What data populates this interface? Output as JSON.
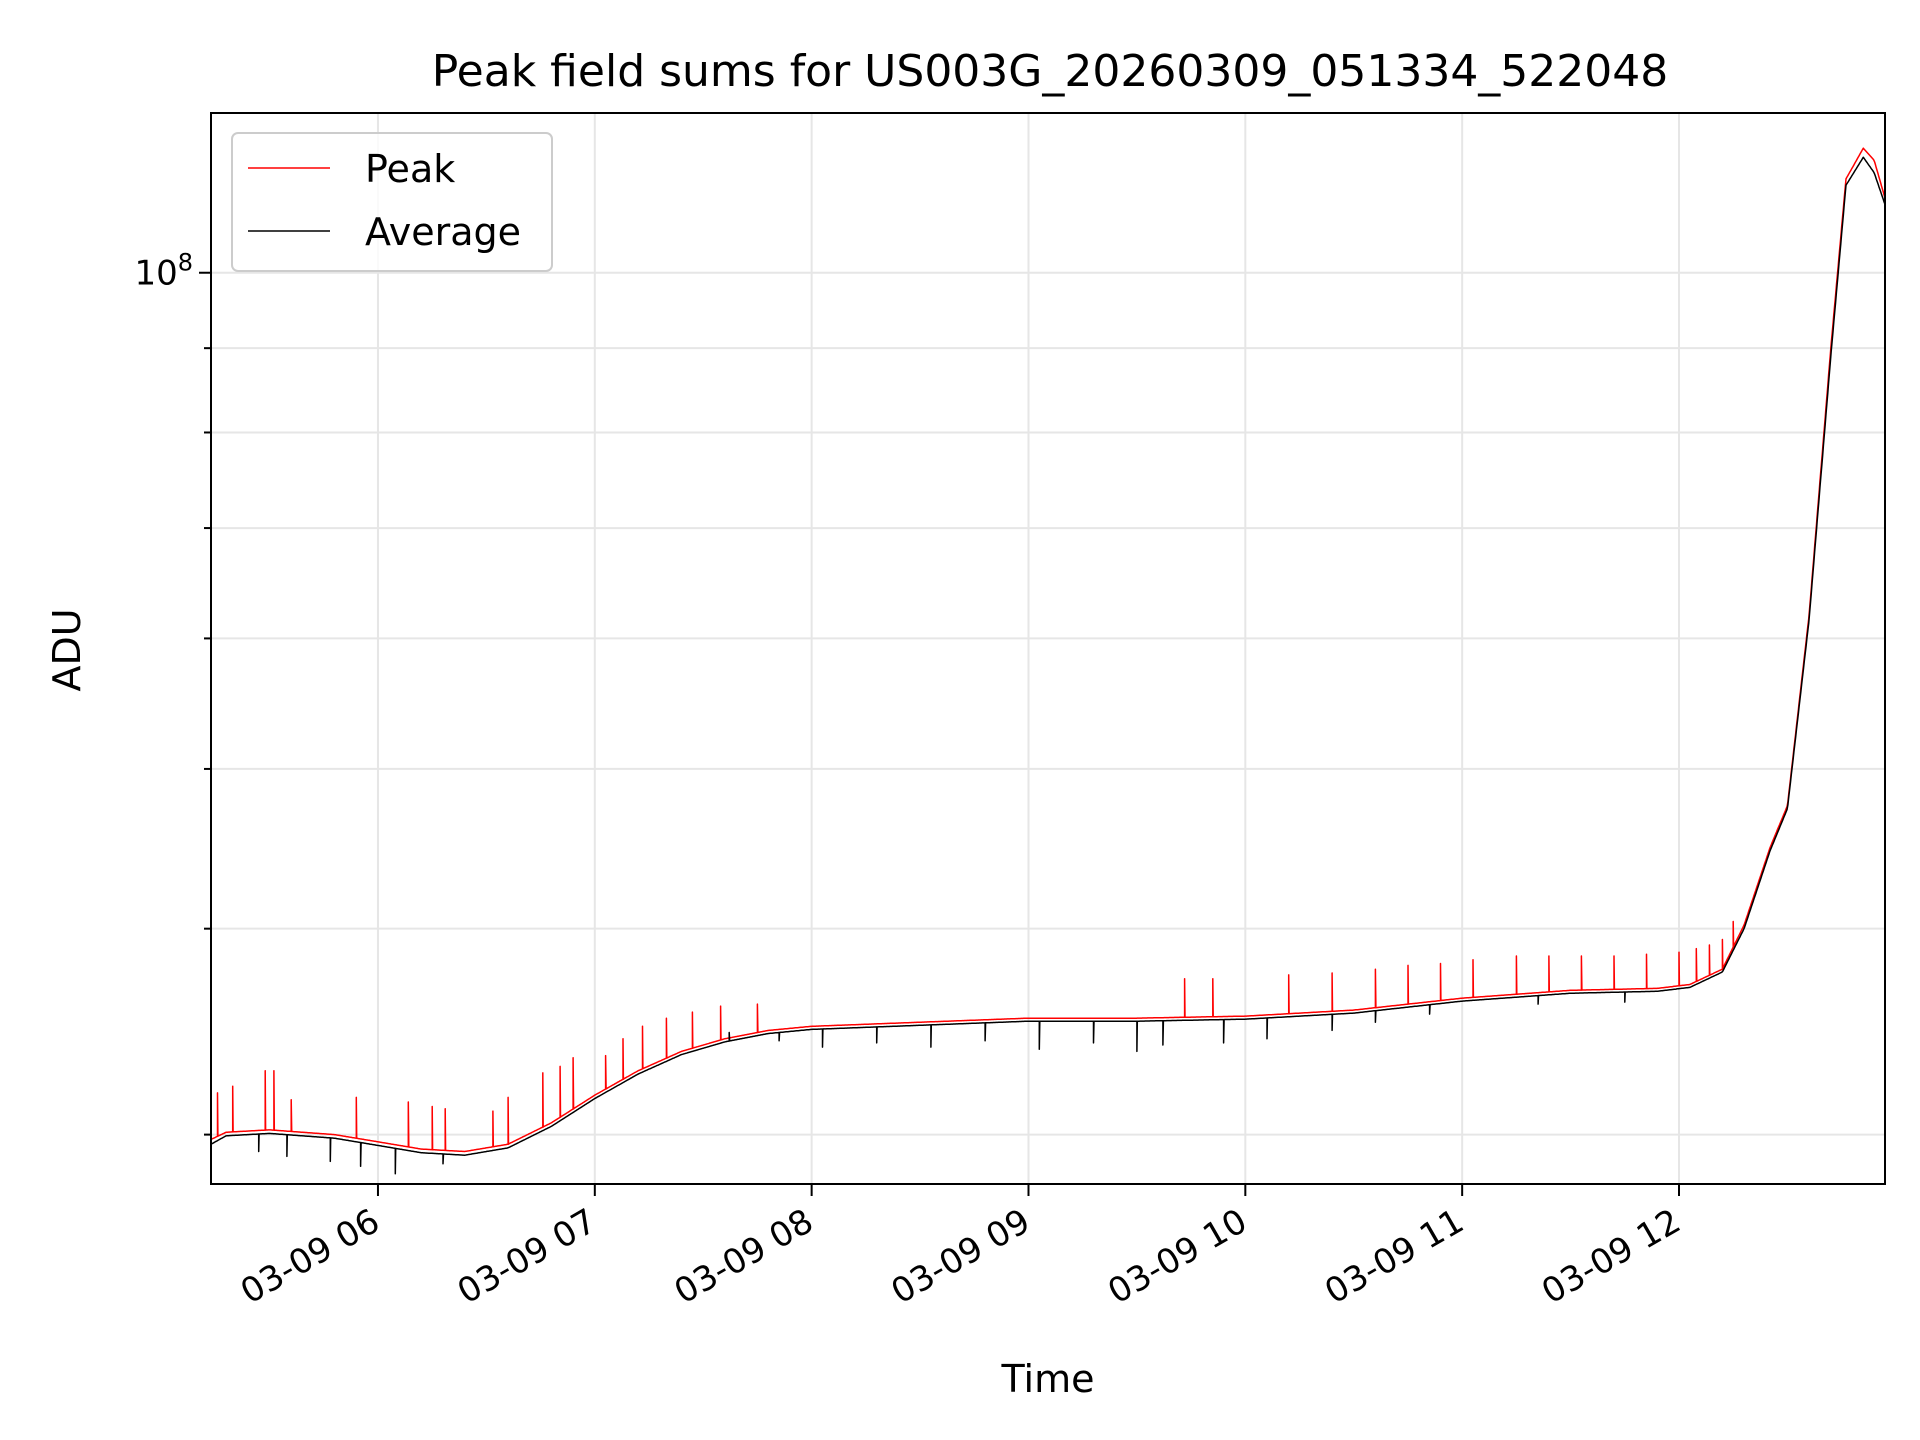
{
  "chart_data": {
    "type": "line",
    "title": "Peak field sums for US003G_20260309_051334_522048",
    "xlabel": "Time",
    "ylabel": "ADU",
    "x_ticks": [
      "03-09 06",
      "03-09 07",
      "03-09 08",
      "03-09 09",
      "03-09 10",
      "03-09 11",
      "03-09 12"
    ],
    "x_tick_hours": [
      6,
      7,
      8,
      9,
      10,
      11,
      12
    ],
    "xlim_hours": [
      5.23,
      12.95
    ],
    "y_scale": "log",
    "ylim": [
      28000000,
      125000000
    ],
    "y_major_ticks": [
      {
        "value": 100000000,
        "base": "10",
        "exp": "8"
      }
    ],
    "y_minor_ticks": [
      30000000,
      40000000,
      50000000,
      60000000,
      70000000,
      80000000,
      90000000
    ],
    "grid": true,
    "legend_position": "top-left",
    "series": [
      {
        "name": "Peak",
        "color": "#ff0000",
        "profile_hours": [
          5.23,
          5.3,
          5.5,
          5.8,
          6.0,
          6.2,
          6.4,
          6.6,
          6.8,
          7.0,
          7.2,
          7.4,
          7.6,
          7.8,
          8.0,
          8.5,
          9.0,
          9.5,
          10.0,
          10.5,
          11.0,
          11.5,
          11.9,
          12.05,
          12.2,
          12.3,
          12.42,
          12.5,
          12.6,
          12.7,
          12.77,
          12.85,
          12.9,
          12.95
        ],
        "profile_values": [
          29800000,
          30100000,
          30200000,
          30000000,
          29700000,
          29400000,
          29300000,
          29600000,
          30500000,
          31700000,
          32800000,
          33700000,
          34300000,
          34700000,
          34900000,
          35100000,
          35300000,
          35300000,
          35400000,
          35700000,
          36300000,
          36700000,
          36800000,
          37000000,
          37800000,
          40200000,
          44800000,
          47500000,
          62000000,
          90000000,
          114000000,
          119000000,
          117000000,
          111000000
        ],
        "spikes": [
          {
            "hour": 5.26,
            "value": 31800000
          },
          {
            "hour": 5.33,
            "value": 32100000
          },
          {
            "hour": 5.48,
            "value": 32800000
          },
          {
            "hour": 5.52,
            "value": 32800000
          },
          {
            "hour": 5.6,
            "value": 31500000
          },
          {
            "hour": 5.9,
            "value": 31600000
          },
          {
            "hour": 6.14,
            "value": 31400000
          },
          {
            "hour": 6.25,
            "value": 31200000
          },
          {
            "hour": 6.31,
            "value": 31100000
          },
          {
            "hour": 6.53,
            "value": 31000000
          },
          {
            "hour": 6.6,
            "value": 31600000
          },
          {
            "hour": 6.76,
            "value": 32700000
          },
          {
            "hour": 6.84,
            "value": 33000000
          },
          {
            "hour": 6.9,
            "value": 33400000
          },
          {
            "hour": 7.05,
            "value": 33500000
          },
          {
            "hour": 7.13,
            "value": 34300000
          },
          {
            "hour": 7.22,
            "value": 34900000
          },
          {
            "hour": 7.33,
            "value": 35300000
          },
          {
            "hour": 7.45,
            "value": 35600000
          },
          {
            "hour": 7.58,
            "value": 35900000
          },
          {
            "hour": 7.75,
            "value": 36000000
          },
          {
            "hour": 9.72,
            "value": 37300000
          },
          {
            "hour": 9.85,
            "value": 37300000
          },
          {
            "hour": 10.2,
            "value": 37500000
          },
          {
            "hour": 10.4,
            "value": 37600000
          },
          {
            "hour": 10.6,
            "value": 37800000
          },
          {
            "hour": 10.75,
            "value": 38000000
          },
          {
            "hour": 10.9,
            "value": 38100000
          },
          {
            "hour": 11.05,
            "value": 38300000
          },
          {
            "hour": 11.25,
            "value": 38500000
          },
          {
            "hour": 11.4,
            "value": 38500000
          },
          {
            "hour": 11.55,
            "value": 38500000
          },
          {
            "hour": 11.7,
            "value": 38500000
          },
          {
            "hour": 11.85,
            "value": 38600000
          },
          {
            "hour": 12.0,
            "value": 38700000
          },
          {
            "hour": 12.08,
            "value": 38900000
          },
          {
            "hour": 12.14,
            "value": 39100000
          },
          {
            "hour": 12.2,
            "value": 39400000
          },
          {
            "hour": 12.25,
            "value": 40400000
          }
        ]
      },
      {
        "name": "Average",
        "color": "#000000",
        "profile_hours": [
          5.23,
          5.3,
          5.5,
          5.8,
          6.0,
          6.2,
          6.4,
          6.6,
          6.8,
          7.0,
          7.2,
          7.4,
          7.6,
          7.8,
          8.0,
          8.5,
          9.0,
          9.5,
          10.0,
          10.5,
          11.0,
          11.5,
          11.9,
          12.05,
          12.2,
          12.3,
          12.42,
          12.5,
          12.6,
          12.7,
          12.77,
          12.85,
          12.9,
          12.95
        ],
        "profile_values": [
          29600000,
          29950000,
          30050000,
          29850000,
          29550000,
          29250000,
          29150000,
          29450000,
          30350000,
          31550000,
          32650000,
          33550000,
          34150000,
          34550000,
          34750000,
          34950000,
          35150000,
          35150000,
          35250000,
          35550000,
          36150000,
          36550000,
          36650000,
          36850000,
          37650000,
          40000000,
          44600000,
          47300000,
          61600000,
          89000000,
          113000000,
          117500000,
          115000000,
          110000000
        ],
        "dips": [
          {
            "hour": 5.45,
            "value": 29300000
          },
          {
            "hour": 5.58,
            "value": 29100000
          },
          {
            "hour": 5.78,
            "value": 28900000
          },
          {
            "hour": 5.92,
            "value": 28700000
          },
          {
            "hour": 6.08,
            "value": 28400000
          },
          {
            "hour": 6.3,
            "value": 28800000
          },
          {
            "hour": 7.62,
            "value": 34600000
          },
          {
            "hour": 7.85,
            "value": 34200000
          },
          {
            "hour": 8.05,
            "value": 33900000
          },
          {
            "hour": 8.3,
            "value": 34100000
          },
          {
            "hour": 8.55,
            "value": 33900000
          },
          {
            "hour": 8.8,
            "value": 34200000
          },
          {
            "hour": 9.05,
            "value": 33800000
          },
          {
            "hour": 9.3,
            "value": 34100000
          },
          {
            "hour": 9.5,
            "value": 33700000
          },
          {
            "hour": 9.62,
            "value": 34000000
          },
          {
            "hour": 9.9,
            "value": 34100000
          },
          {
            "hour": 10.1,
            "value": 34300000
          },
          {
            "hour": 10.4,
            "value": 34700000
          },
          {
            "hour": 10.6,
            "value": 35100000
          },
          {
            "hour": 10.85,
            "value": 35500000
          },
          {
            "hour": 11.35,
            "value": 36000000
          },
          {
            "hour": 11.75,
            "value": 36100000
          }
        ]
      }
    ]
  }
}
